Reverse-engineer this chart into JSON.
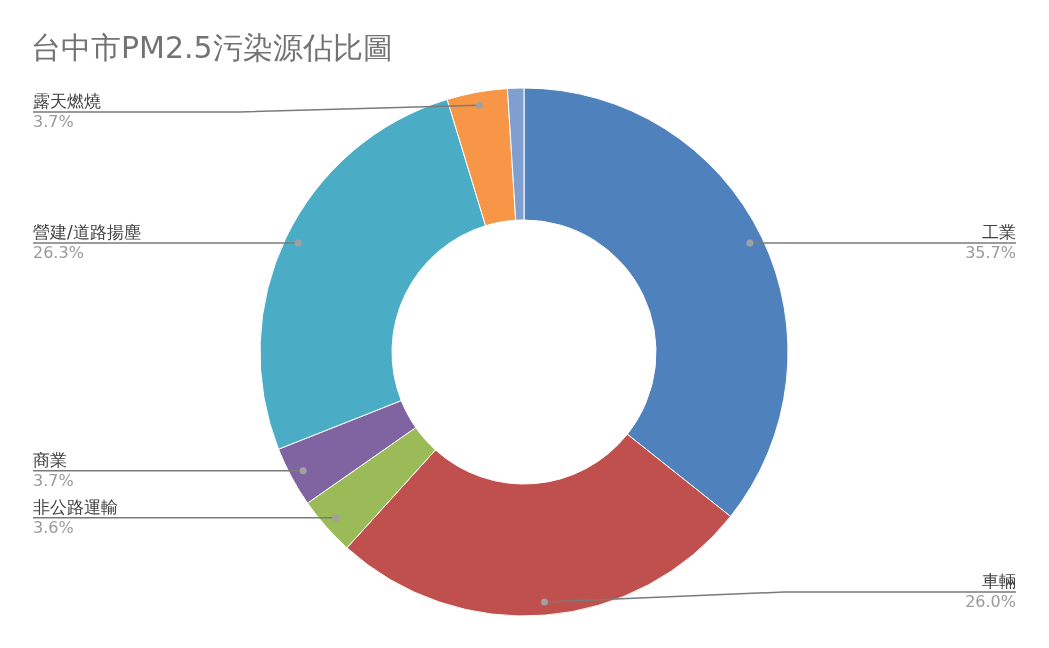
{
  "chart_data": {
    "type": "donut",
    "title": "台中市PM2.5污染源佔比圖",
    "categories": [
      "工業",
      "車輛",
      "非公路運輸",
      "商業",
      "營建/道路揚塵",
      "露天燃燒",
      null
    ],
    "values": [
      35.7,
      26.0,
      3.6,
      3.7,
      26.3,
      3.7,
      1.0
    ],
    "colors": [
      "#4f81bd",
      "#c0504d",
      "#9bbb59",
      "#8064a2",
      "#4bacc6",
      "#f79646",
      "#7f9fd0"
    ],
    "value_labels": [
      "35.7%",
      "26.0%",
      "3.6%",
      "3.7%",
      "26.3%",
      "3.7%",
      null
    ]
  }
}
